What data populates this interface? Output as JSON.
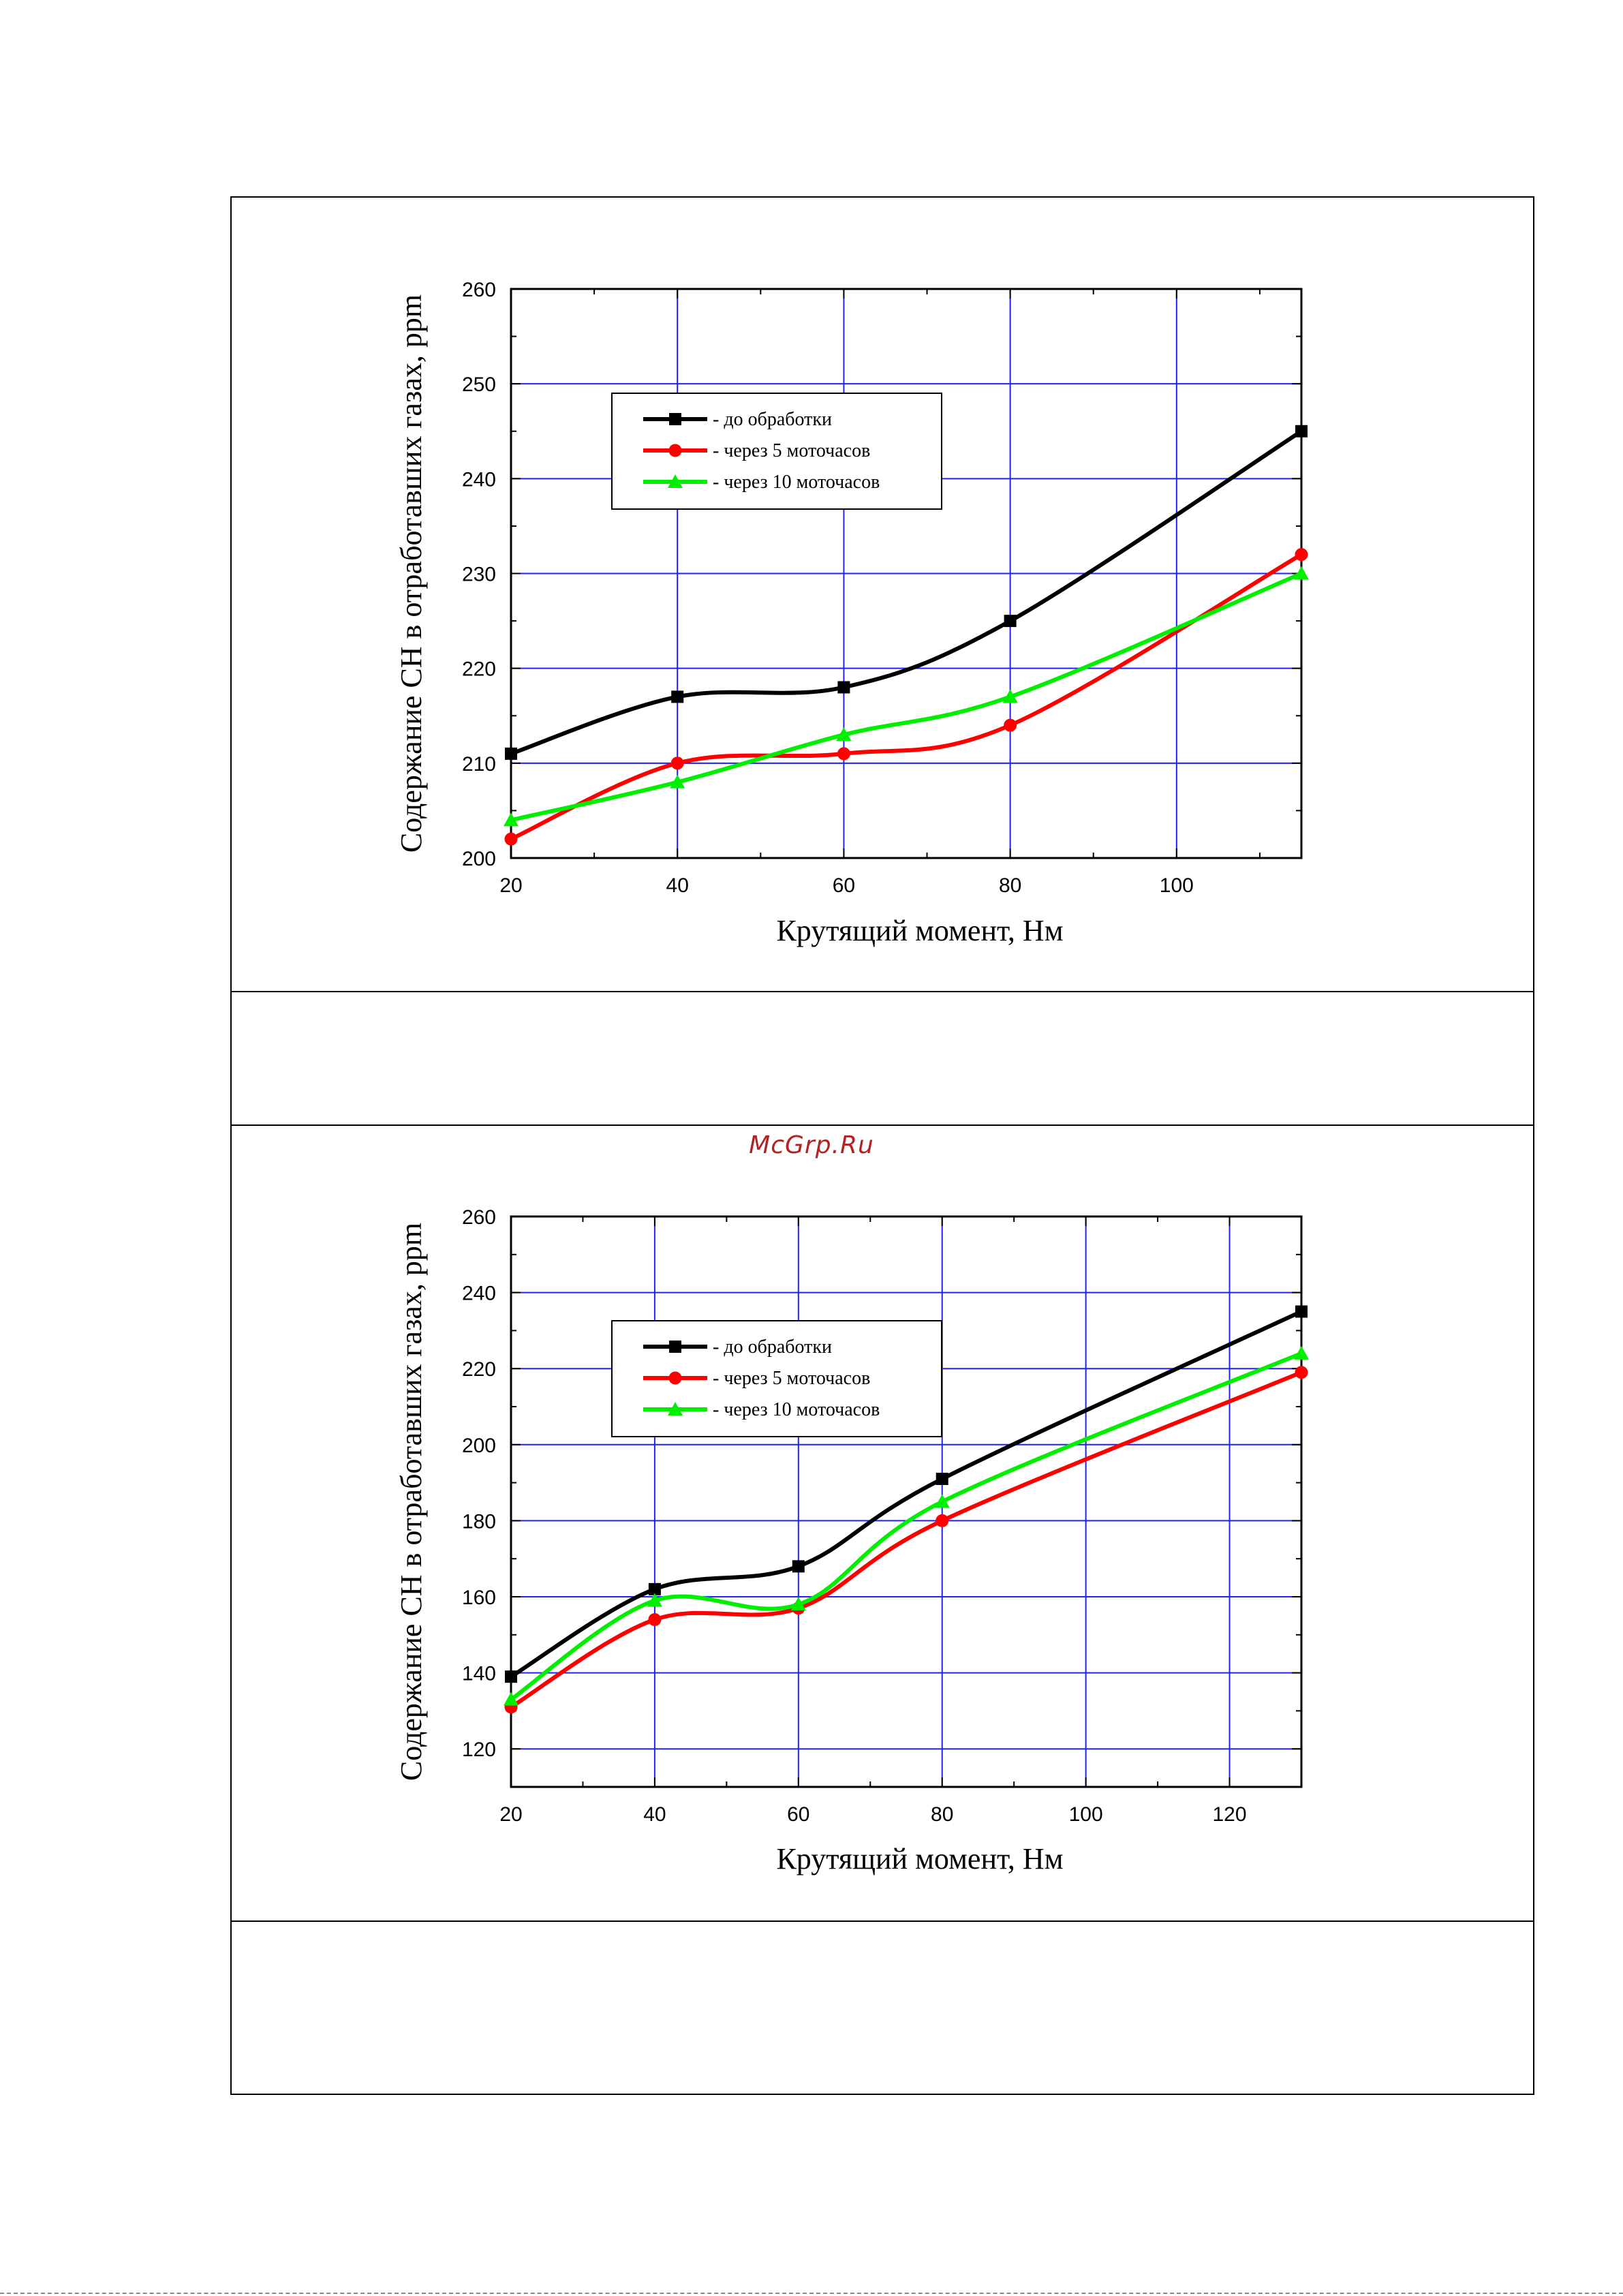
{
  "watermark": "McGrp.Ru",
  "colors": {
    "series_black": "#000000",
    "series_red": "#ff0000",
    "series_green": "#00ee00",
    "grid": "#2020ff"
  },
  "chart_data": [
    {
      "type": "line",
      "xlabel": "Крутящий момент, Нм",
      "ylabel": "Содержание СН в отработавших газах, ppm",
      "xlim": [
        20,
        115
      ],
      "ylim": [
        200,
        260
      ],
      "xticks": [
        20,
        40,
        60,
        80,
        100
      ],
      "yticks": [
        200,
        210,
        220,
        230,
        240,
        250,
        260
      ],
      "grid": true,
      "legend_position": "top-left",
      "series": [
        {
          "name": "- до обработки",
          "marker": "square",
          "color": "#000000",
          "x": [
            20,
            40,
            60,
            80,
            115
          ],
          "y": [
            211,
            217,
            218,
            225,
            245
          ]
        },
        {
          "name": "- через 5 моточасов",
          "marker": "circle",
          "color": "#ff0000",
          "x": [
            20,
            40,
            60,
            80,
            115
          ],
          "y": [
            202,
            210,
            211,
            214,
            232
          ]
        },
        {
          "name": "- через 10 моточасов",
          "marker": "triangle",
          "color": "#00ee00",
          "x": [
            20,
            40,
            60,
            80,
            115
          ],
          "y": [
            204,
            208,
            213,
            217,
            230
          ]
        }
      ]
    },
    {
      "type": "line",
      "xlabel": "Крутящий момент, Нм",
      "ylabel": "Содержание СН в отработавших газах, ppm",
      "xlim": [
        20,
        130
      ],
      "ylim": [
        110,
        260
      ],
      "xticks": [
        20,
        40,
        60,
        80,
        100,
        120
      ],
      "yticks": [
        120,
        140,
        160,
        180,
        200,
        220,
        240,
        260
      ],
      "grid": true,
      "legend_position": "top-left",
      "series": [
        {
          "name": "- до обработки",
          "marker": "square",
          "color": "#000000",
          "x": [
            20,
            40,
            60,
            80,
            130
          ],
          "y": [
            139,
            162,
            168,
            191,
            235
          ]
        },
        {
          "name": "- через 5 моточасов",
          "marker": "circle",
          "color": "#ff0000",
          "x": [
            20,
            40,
            60,
            80,
            130
          ],
          "y": [
            131,
            154,
            157,
            180,
            219
          ]
        },
        {
          "name": "- через 10 моточасов",
          "marker": "triangle",
          "color": "#00ee00",
          "x": [
            20,
            40,
            60,
            80,
            130
          ],
          "y": [
            133,
            159,
            158,
            185,
            224
          ]
        }
      ]
    }
  ]
}
